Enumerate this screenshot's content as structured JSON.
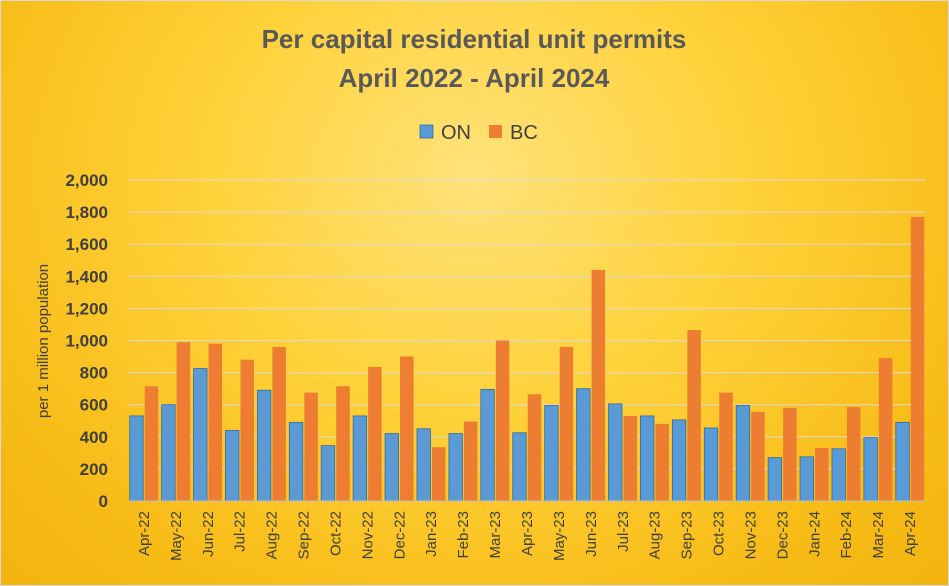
{
  "chart_data": {
    "type": "bar",
    "title_line1": "Per capital residential unit permits",
    "title_line2": "April 2022 - April 2024",
    "ylabel": "per 1 million population",
    "xlabel": "",
    "ylim": [
      0,
      2000
    ],
    "yticks": [
      "0",
      "200",
      "400",
      "600",
      "800",
      "1,000",
      "1,200",
      "1,400",
      "1,600",
      "1,800",
      "2,000"
    ],
    "ytick_values": [
      0,
      200,
      400,
      600,
      800,
      1000,
      1200,
      1400,
      1600,
      1800,
      2000
    ],
    "grid": true,
    "legend_position": "top-center",
    "categories": [
      "Apr-22",
      "May-22",
      "Jun-22",
      "Jul-22",
      "Aug-22",
      "Sep-22",
      "Oct-22",
      "Nov-22",
      "Dec-22",
      "Jan-23",
      "Feb-23",
      "Mar-23",
      "Apr-23",
      "May-23",
      "Jun-23",
      "Jul-23",
      "Aug-23",
      "Sep-23",
      "Oct-23",
      "Nov-23",
      "Dec-23",
      "Jan-24",
      "Feb-24",
      "Mar-24",
      "Apr-24"
    ],
    "series": [
      {
        "name": "ON",
        "color": "#5b9bd5",
        "values": [
          530,
          600,
          825,
          440,
          690,
          490,
          345,
          530,
          420,
          450,
          420,
          695,
          425,
          595,
          700,
          605,
          530,
          505,
          455,
          595,
          270,
          275,
          325,
          395,
          490
        ]
      },
      {
        "name": "BC",
        "color": "#ed7d31",
        "values": [
          715,
          990,
          980,
          880,
          960,
          675,
          715,
          835,
          900,
          335,
          495,
          1000,
          665,
          960,
          1440,
          530,
          480,
          1065,
          675,
          555,
          580,
          330,
          585,
          890,
          1770
        ]
      }
    ]
  }
}
